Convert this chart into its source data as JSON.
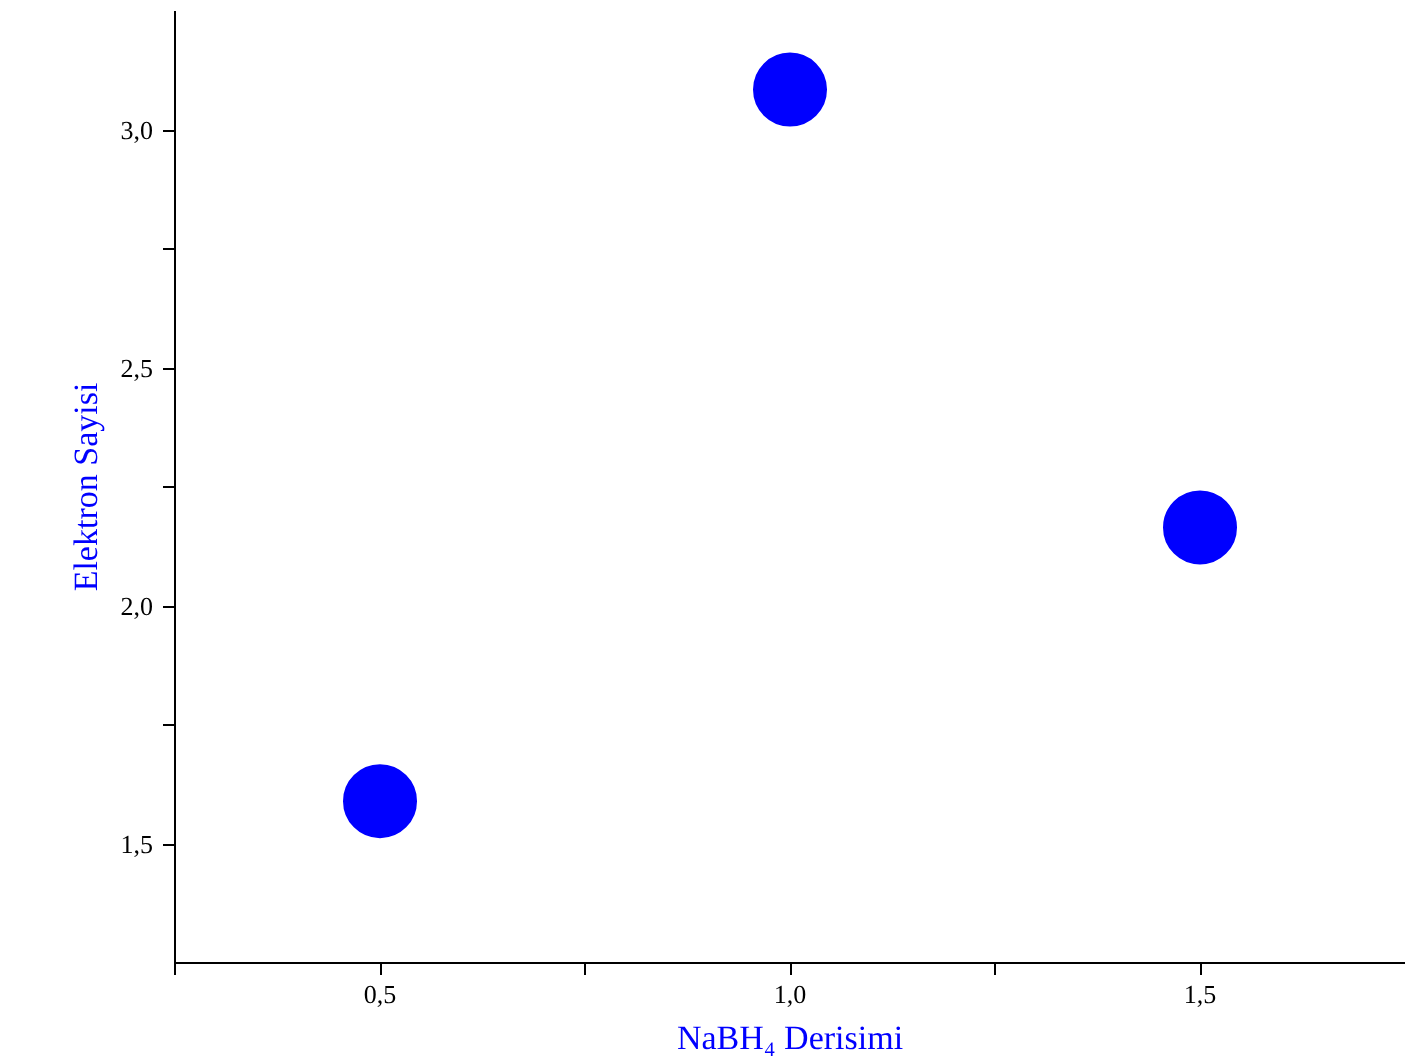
{
  "chart_data": {
    "type": "scatter",
    "xlabel": "NaBH₄ Derisimi",
    "ylabel": "Elektron Sayisi",
    "x": [
      0.5,
      1.0,
      1.5
    ],
    "series": [
      {
        "color": "#0000ff",
        "values": [
          1.59,
          3.085,
          2.165
        ]
      }
    ],
    "marker": "circle",
    "grid": false,
    "xlim": [
      0.25,
      1.75
    ],
    "ylim": [
      1.25,
      3.25
    ],
    "xticks": [
      {
        "value": 0.25,
        "label": null
      },
      {
        "value": 0.5,
        "label": "0,5"
      },
      {
        "value": 0.75,
        "label": null
      },
      {
        "value": 1.0,
        "label": "1,0"
      },
      {
        "value": 1.25,
        "label": null
      },
      {
        "value": 1.5,
        "label": "1,5"
      }
    ],
    "yticks": [
      {
        "value": 1.5,
        "label": "1,5"
      },
      {
        "value": 1.75,
        "label": null
      },
      {
        "value": 2.0,
        "label": "2,0"
      },
      {
        "value": 2.25,
        "label": null
      },
      {
        "value": 2.5,
        "label": "2,5"
      },
      {
        "value": 2.75,
        "label": null
      },
      {
        "value": 3.0,
        "label": "3,0"
      }
    ]
  }
}
